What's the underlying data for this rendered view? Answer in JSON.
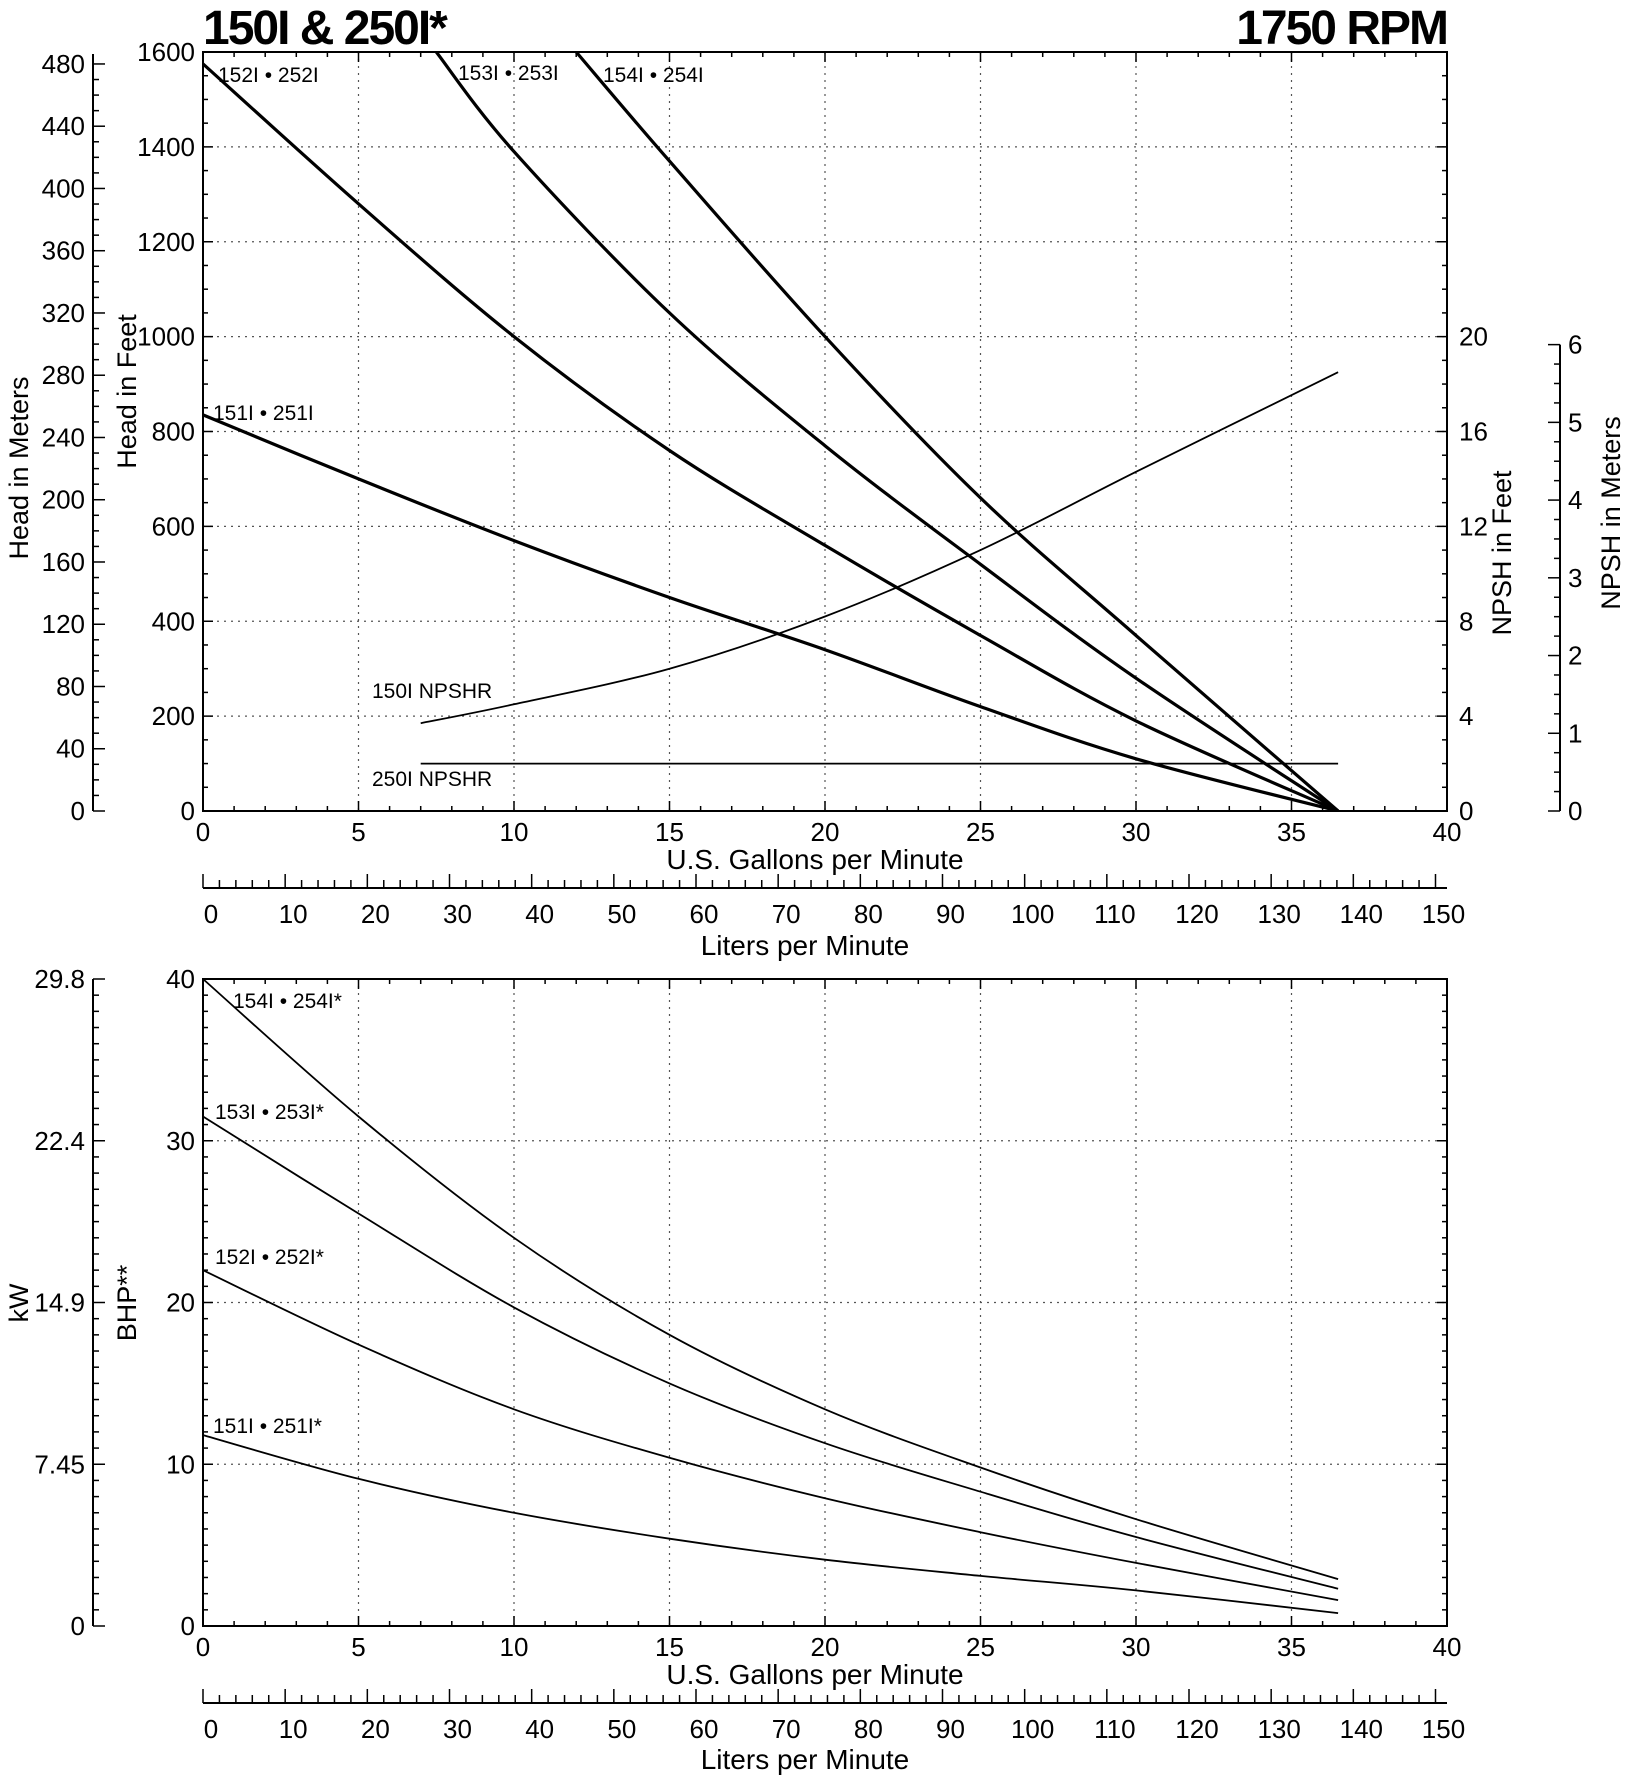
{
  "header": {
    "title": "150I & 250I*",
    "rpm": "1750 RPM"
  },
  "colors": {
    "ink": "#000000",
    "grid": "#555555",
    "background": "#ffffff"
  },
  "chart_data": [
    {
      "type": "line",
      "id": "head-capacity",
      "title": "150I & 250I*",
      "subtitle": "1750 RPM",
      "xlabel": "U.S. Gallons per Minute",
      "ylabel": "Head in Feet",
      "xlim": [
        0,
        40
      ],
      "ylim": [
        0,
        1600
      ],
      "xticks": [
        0,
        5,
        10,
        15,
        20,
        25,
        30,
        35,
        40
      ],
      "yticks": [
        0,
        200,
        400,
        600,
        800,
        1000,
        1200,
        1400,
        1600
      ],
      "grid": true,
      "secondary_axes": {
        "head_meters": {
          "label": "Head in Meters",
          "ticks": [
            0,
            40,
            80,
            120,
            160,
            200,
            240,
            280,
            320,
            360,
            400,
            440,
            480
          ],
          "feet_per_unit": 3.2808
        },
        "npsh_feet": {
          "label": "NPSH in Feet",
          "ticks": [
            0,
            4,
            8,
            12,
            16,
            20
          ],
          "ylim": [
            0,
            20
          ]
        },
        "npsh_meters": {
          "label": "NPSH in Meters",
          "ticks": [
            0,
            1,
            2,
            3,
            4,
            5,
            6
          ],
          "ylim": [
            0,
            6
          ]
        },
        "liters": {
          "label": "Liters per Minute",
          "ticks": [
            0,
            10,
            20,
            30,
            40,
            50,
            60,
            70,
            80,
            90,
            100,
            110,
            120,
            130,
            140,
            150
          ],
          "lpm_per_gpm": 3.785
        }
      },
      "series": [
        {
          "name": "151I • 251I",
          "x": [
            0,
            5,
            10,
            15,
            20,
            25,
            30,
            36.5
          ],
          "y": [
            835,
            700,
            570,
            450,
            340,
            220,
            110,
            0
          ]
        },
        {
          "name": "152I • 252I",
          "x": [
            0,
            5,
            10,
            15,
            20,
            25,
            30,
            36.5
          ],
          "y": [
            1575,
            1280,
            1000,
            760,
            560,
            370,
            190,
            0
          ]
        },
        {
          "name": "153I • 253I",
          "x": [
            7.5,
            10,
            15,
            20,
            25,
            30,
            36.5
          ],
          "y": [
            1600,
            1390,
            1050,
            770,
            520,
            280,
            0
          ]
        },
        {
          "name": "154I • 254I",
          "x": [
            12,
            15,
            20,
            25,
            30,
            36.5
          ],
          "y": [
            1600,
            1370,
            1000,
            660,
            370,
            0
          ]
        }
      ],
      "npshr_series": [
        {
          "name": "150I NPSHR",
          "x": [
            7,
            10,
            15,
            20,
            25,
            30,
            36.5
          ],
          "y": [
            3.7,
            4.5,
            6.0,
            8.2,
            11.0,
            14.3,
            18.5
          ]
        },
        {
          "name": "250I NPSHR",
          "x": [
            7,
            36.5
          ],
          "y": [
            2.0,
            2.0
          ]
        }
      ]
    },
    {
      "type": "line",
      "id": "power",
      "xlabel": "U.S. Gallons per Minute",
      "ylabel": "BHP**",
      "xlim": [
        0,
        40
      ],
      "ylim": [
        0,
        40
      ],
      "xticks": [
        0,
        5,
        10,
        15,
        20,
        25,
        30,
        35,
        40
      ],
      "yticks": [
        0,
        10,
        20,
        30,
        40
      ],
      "grid": true,
      "secondary_axes": {
        "kw": {
          "label": "kW",
          "ticks": [
            "0",
            "7.45",
            "14.9",
            "22.4",
            "29.8"
          ]
        },
        "liters": {
          "label": "Liters per Minute",
          "ticks": [
            0,
            10,
            20,
            30,
            40,
            50,
            60,
            70,
            80,
            90,
            100,
            110,
            120,
            130,
            140,
            150
          ],
          "lpm_per_gpm": 3.785
        }
      },
      "series": [
        {
          "name": "151I • 251I*",
          "x": [
            0,
            5,
            10,
            15,
            20,
            25,
            30,
            36.5
          ],
          "y": [
            11.8,
            9.1,
            7.0,
            5.4,
            4.1,
            3.1,
            2.2,
            0.8
          ]
        },
        {
          "name": "152I • 252I*",
          "x": [
            0,
            5,
            10,
            15,
            20,
            25,
            30,
            36.5
          ],
          "y": [
            22.0,
            17.4,
            13.4,
            10.4,
            7.9,
            5.8,
            3.9,
            1.6
          ]
        },
        {
          "name": "153I • 253I*",
          "x": [
            0,
            5,
            10,
            15,
            20,
            25,
            30,
            36.5
          ],
          "y": [
            31.5,
            25.5,
            19.7,
            15.0,
            11.3,
            8.3,
            5.5,
            2.3
          ]
        },
        {
          "name": "154I • 254I*",
          "x": [
            0,
            5,
            10,
            15,
            20,
            25,
            30,
            36.5
          ],
          "y": [
            40.0,
            31.5,
            24.0,
            18.0,
            13.4,
            9.8,
            6.6,
            2.9
          ]
        }
      ]
    }
  ]
}
